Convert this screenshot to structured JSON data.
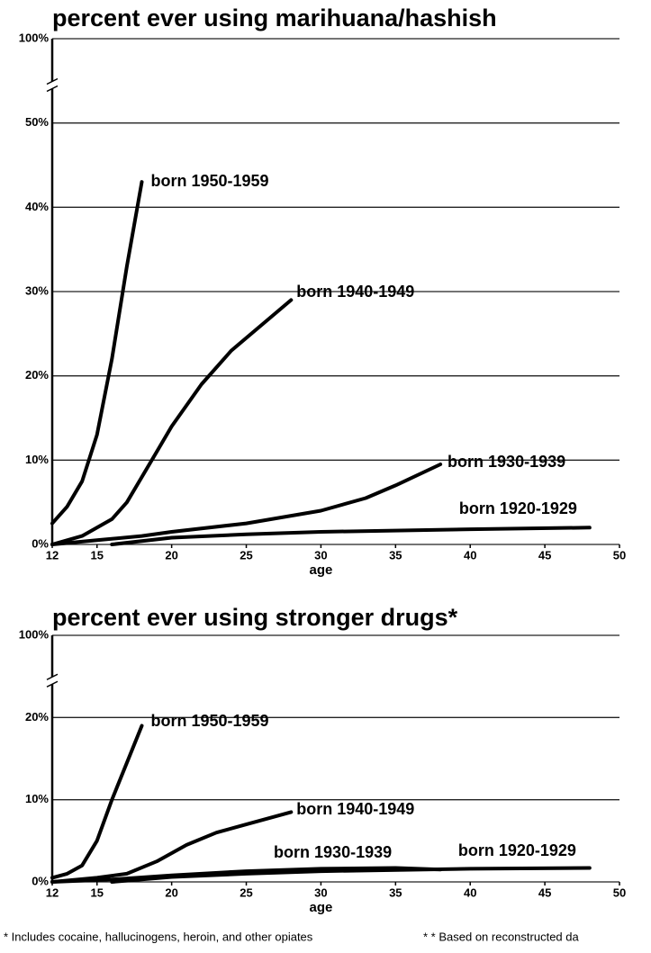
{
  "chart_data": [
    {
      "type": "line",
      "title": "percent ever using marihuana/hashish",
      "x_label": "age",
      "xlim": [
        12,
        50
      ],
      "xticks": [
        12,
        15,
        20,
        25,
        30,
        35,
        40,
        45,
        50
      ],
      "ylim": [
        0,
        100
      ],
      "axis_break": true,
      "grid": true,
      "yticks": [
        {
          "value": 0,
          "label": "0%"
        },
        {
          "value": 10,
          "label": "10%"
        },
        {
          "value": 20,
          "label": "20%"
        },
        {
          "value": 30,
          "label": "30%"
        },
        {
          "value": 40,
          "label": "40%"
        },
        {
          "value": 50,
          "label": "50%"
        },
        {
          "value": 100,
          "label": "100%"
        }
      ],
      "series": [
        {
          "name": "born 1950-1959",
          "color": "#000000",
          "x": [
            12,
            13,
            14,
            15,
            16,
            17,
            18
          ],
          "values": [
            2.5,
            4.5,
            7.5,
            13,
            22,
            33,
            43
          ]
        },
        {
          "name": "born 1940-1949",
          "color": "#000000",
          "x": [
            12,
            14,
            16,
            17,
            18,
            19,
            20,
            22,
            24,
            26,
            28
          ],
          "values": [
            0,
            1,
            3,
            5,
            8,
            11,
            14,
            19,
            23,
            26,
            29
          ]
        },
        {
          "name": "born 1930-1939",
          "color": "#000000",
          "x": [
            12,
            15,
            18,
            20,
            25,
            30,
            33,
            35,
            38
          ],
          "values": [
            0,
            0.5,
            1,
            1.5,
            2.5,
            4,
            5.5,
            7,
            9.5
          ]
        },
        {
          "name": "born 1920-1929",
          "color": "#000000",
          "x": [
            16,
            20,
            25,
            30,
            40,
            48
          ],
          "values": [
            0,
            0.8,
            1.2,
            1.5,
            1.8,
            2
          ]
        }
      ]
    },
    {
      "type": "line",
      "title": "percent ever using stronger drugs*",
      "x_label": "age",
      "xlim": [
        12,
        50
      ],
      "xticks": [
        12,
        15,
        20,
        25,
        30,
        35,
        40,
        45,
        50
      ],
      "ylim": [
        0,
        100
      ],
      "axis_break": true,
      "grid": true,
      "yticks": [
        {
          "value": 0,
          "label": "0%"
        },
        {
          "value": 10,
          "label": "10%"
        },
        {
          "value": 20,
          "label": "20%"
        },
        {
          "value": 100,
          "label": "100%"
        }
      ],
      "series": [
        {
          "name": "born 1950-1959",
          "color": "#000000",
          "x": [
            12,
            13,
            14,
            15,
            16,
            17,
            18
          ],
          "values": [
            0.5,
            1,
            2,
            5,
            10,
            14.5,
            19
          ]
        },
        {
          "name": "born 1940-1949",
          "color": "#000000",
          "x": [
            12,
            15,
            17,
            19,
            21,
            23,
            25,
            28
          ],
          "values": [
            0,
            0.5,
            1,
            2.5,
            4.5,
            6,
            7,
            8.5
          ]
        },
        {
          "name": "born 1930-1939",
          "color": "#000000",
          "x": [
            12,
            16,
            20,
            25,
            30,
            35,
            38
          ],
          "values": [
            0,
            0.3,
            0.8,
            1.3,
            1.6,
            1.7,
            1.5
          ]
        },
        {
          "name": "born 1920-1929",
          "color": "#000000",
          "x": [
            16,
            20,
            25,
            30,
            40,
            48
          ],
          "values": [
            0,
            0.6,
            1,
            1.3,
            1.6,
            1.7
          ]
        }
      ]
    }
  ],
  "notes": [
    "* Includes cocaine, hallucinogens, heroin, and other opiates",
    "* * Based on reconstructed da"
  ]
}
